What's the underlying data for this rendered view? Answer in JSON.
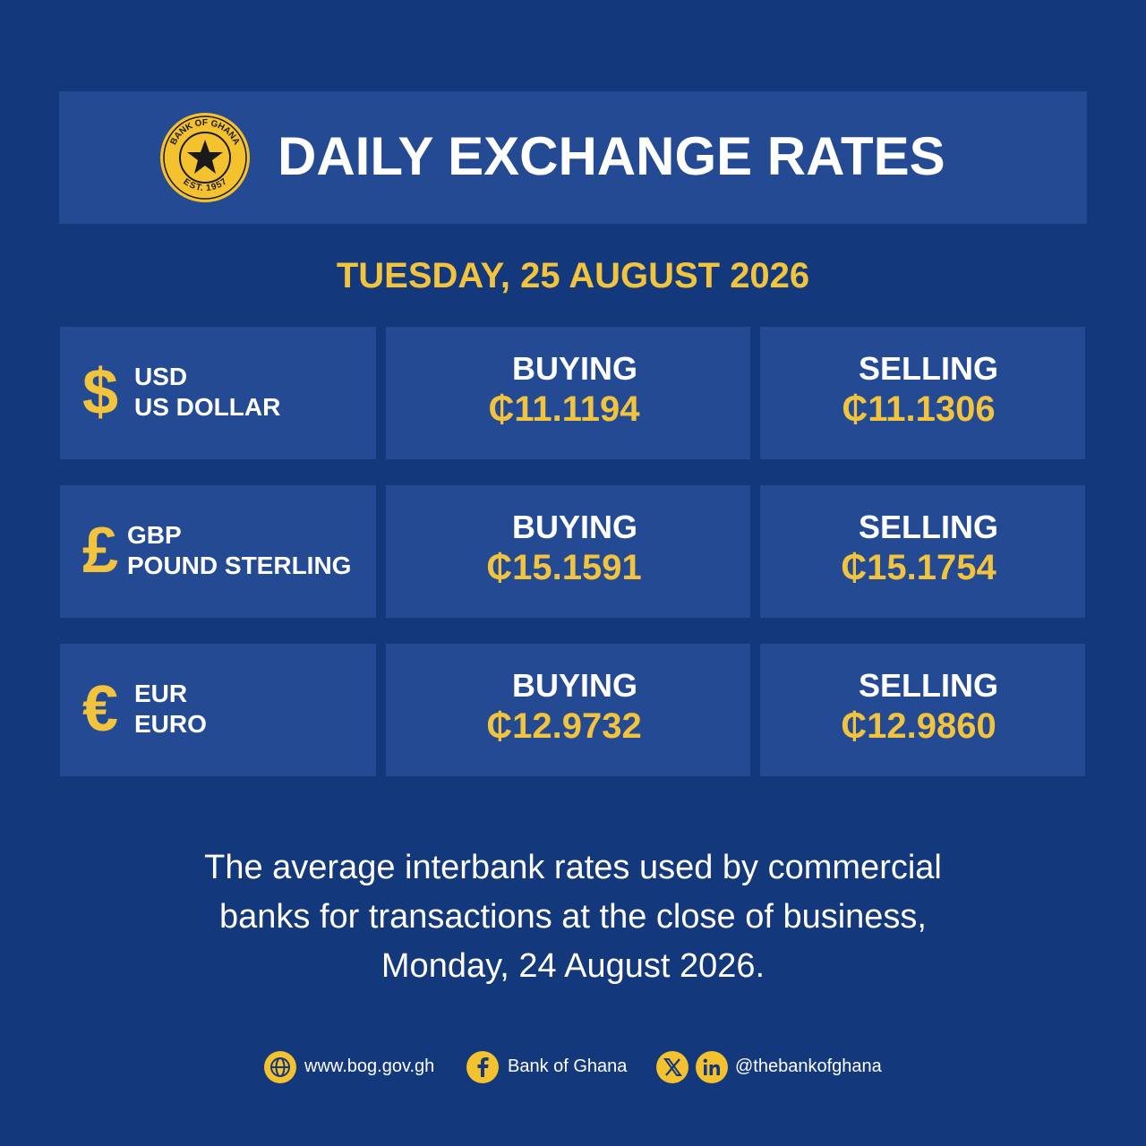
{
  "logo": {
    "top_text": "BANK OF GHANA",
    "bottom_text": "EST. 1957"
  },
  "header": {
    "title": "DAILY EXCHANGE RATES"
  },
  "date": "TUESDAY, 25 AUGUST 2026",
  "rows": [
    {
      "symbol": "$",
      "code": "USD",
      "name": "US DOLLAR",
      "buying_label": "BUYING",
      "buying": "₵11.1194",
      "selling_label": "SELLING",
      "selling": "₵11.1306"
    },
    {
      "symbol": "£",
      "code": "GBP",
      "name": "POUND STERLING",
      "buying_label": "BUYING",
      "buying": "₵15.1591",
      "selling_label": "SELLING",
      "selling": "₵15.1754"
    },
    {
      "symbol": "€",
      "code": "EUR",
      "name": "EURO",
      "buying_label": "BUYING",
      "buying": "₵12.9732",
      "selling_label": "SELLING",
      "selling": "₵12.9860"
    }
  ],
  "note": [
    "The average interbank rates used by commercial",
    "banks for transactions at the close of business,",
    "Monday, 24 August 2026."
  ],
  "footer": {
    "website": "www.bog.gov.gh",
    "facebook": "Bank of Ghana",
    "handle": "@thebankofghana"
  }
}
